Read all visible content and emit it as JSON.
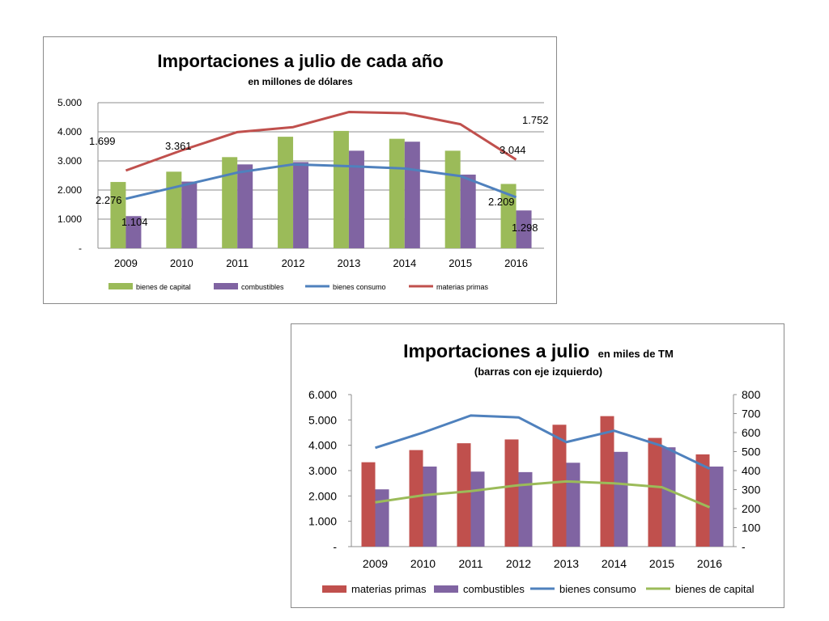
{
  "chart_data": [
    {
      "type": "bar",
      "title": "Importaciones a julio de cada año",
      "subtitle": "en millones de dólares",
      "categories": [
        "2009",
        "2010",
        "2011",
        "2012",
        "2013",
        "2014",
        "2015",
        "2016"
      ],
      "y_ticks": [
        "-",
        "1.000",
        "2.000",
        "3.000",
        "4.000",
        "5.000"
      ],
      "ylim": [
        0,
        5000
      ],
      "grid": true,
      "legend_position": "bottom",
      "series": [
        {
          "name": "bienes de capital",
          "type": "bar",
          "color": "#9bbb59",
          "values": [
            2276,
            2630,
            3130,
            3830,
            4030,
            3760,
            3350,
            2209
          ]
        },
        {
          "name": "combustibles",
          "type": "bar",
          "color": "#8064a2",
          "values": [
            1104,
            2290,
            2880,
            2960,
            3350,
            3660,
            2530,
            1298
          ]
        },
        {
          "name": "bienes consumo",
          "type": "line",
          "color": "#4f81bd",
          "values": [
            1699,
            2150,
            2600,
            2880,
            2820,
            2740,
            2480,
            1752
          ]
        },
        {
          "name": "materias primas",
          "type": "line",
          "color": "#c0504d",
          "values": [
            2670,
            3361,
            3990,
            4160,
            4680,
            4640,
            4260,
            3044
          ]
        }
      ],
      "data_labels": [
        "1.699",
        "3.361",
        "1.752",
        "3.044",
        "2.276",
        "1.104",
        "2.209",
        "1.298"
      ]
    },
    {
      "type": "bar",
      "title": "Importaciones a julio",
      "title_suffix": "en miles de TM",
      "subtitle": "(barras con eje izquierdo)",
      "categories": [
        "2009",
        "2010",
        "2011",
        "2012",
        "2013",
        "2014",
        "2015",
        "2016"
      ],
      "y_ticks": [
        "-",
        "1.000",
        "2.000",
        "3.000",
        "4.000",
        "5.000",
        "6.000"
      ],
      "y2_ticks": [
        "-",
        "100",
        "200",
        "300",
        "400",
        "500",
        "600",
        "700",
        "800"
      ],
      "ylim": [
        0,
        6000
      ],
      "y2lim": [
        0,
        800
      ],
      "grid": false,
      "legend_position": "bottom",
      "series": [
        {
          "name": "materias primas",
          "type": "bar",
          "axis": "left",
          "color": "#c0504d",
          "values": [
            3330,
            3810,
            4080,
            4230,
            4810,
            5150,
            4290,
            3640
          ]
        },
        {
          "name": "combustibles",
          "type": "bar",
          "axis": "left",
          "color": "#8064a2",
          "values": [
            2260,
            3160,
            2960,
            2940,
            3310,
            3740,
            3920,
            3160
          ]
        },
        {
          "name": "bienes consumo",
          "type": "line",
          "axis": "right",
          "color": "#4f81bd",
          "values": [
            520,
            600,
            690,
            680,
            550,
            610,
            530,
            410
          ]
        },
        {
          "name": "bienes de capital",
          "type": "line",
          "axis": "right",
          "color": "#9bbb59",
          "values": [
            233,
            270,
            292,
            323,
            343,
            333,
            313,
            207
          ]
        }
      ]
    }
  ]
}
